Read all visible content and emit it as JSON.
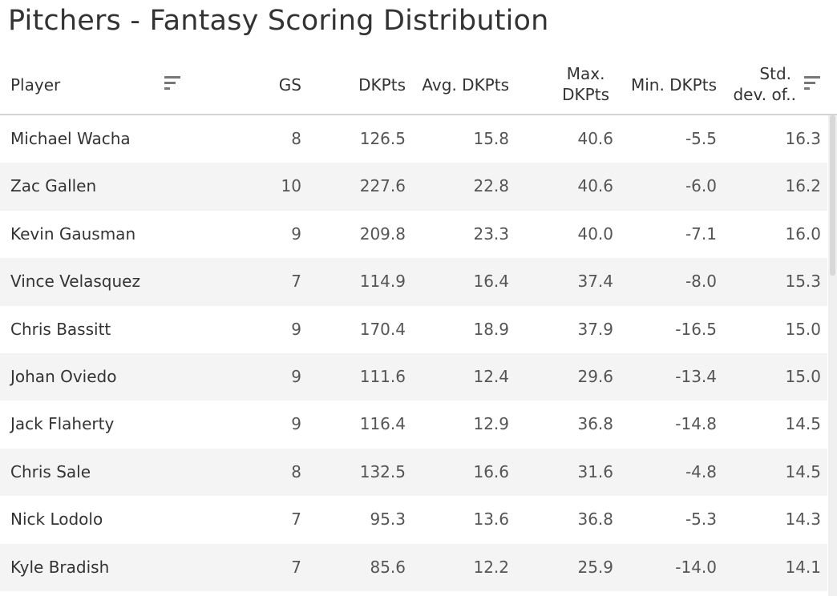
{
  "title": "Pitchers - Fantasy Scoring Distribution",
  "columns": {
    "player": "Player",
    "gs": "GS",
    "dkpts": "DKPts",
    "avg": "Avg. DKPts",
    "max_line1": "Max.",
    "max_line2": "DKPts",
    "min": "Min. DKPts",
    "std_line1": "Std.",
    "std_line2": "dev. of.."
  },
  "icons": {
    "player_sort": "sort-icon",
    "std_sort": "sort-descending-icon"
  },
  "rows": [
    {
      "player": "Michael Wacha",
      "gs": "8",
      "dkpts": "126.5",
      "avg": "15.8",
      "max": "40.6",
      "min": "-5.5",
      "std": "16.3"
    },
    {
      "player": "Zac Gallen",
      "gs": "10",
      "dkpts": "227.6",
      "avg": "22.8",
      "max": "40.6",
      "min": "-6.0",
      "std": "16.2"
    },
    {
      "player": "Kevin Gausman",
      "gs": "9",
      "dkpts": "209.8",
      "avg": "23.3",
      "max": "40.0",
      "min": "-7.1",
      "std": "16.0"
    },
    {
      "player": "Vince Velasquez",
      "gs": "7",
      "dkpts": "114.9",
      "avg": "16.4",
      "max": "37.4",
      "min": "-8.0",
      "std": "15.3"
    },
    {
      "player": "Chris Bassitt",
      "gs": "9",
      "dkpts": "170.4",
      "avg": "18.9",
      "max": "37.9",
      "min": "-16.5",
      "std": "15.0"
    },
    {
      "player": "Johan Oviedo",
      "gs": "9",
      "dkpts": "111.6",
      "avg": "12.4",
      "max": "29.6",
      "min": "-13.4",
      "std": "15.0"
    },
    {
      "player": "Jack Flaherty",
      "gs": "9",
      "dkpts": "116.4",
      "avg": "12.9",
      "max": "36.8",
      "min": "-14.8",
      "std": "14.5"
    },
    {
      "player": "Chris Sale",
      "gs": "8",
      "dkpts": "132.5",
      "avg": "16.6",
      "max": "31.6",
      "min": "-4.8",
      "std": "14.5"
    },
    {
      "player": "Nick Lodolo",
      "gs": "7",
      "dkpts": "95.3",
      "avg": "13.6",
      "max": "36.8",
      "min": "-5.3",
      "std": "14.3"
    },
    {
      "player": "Kyle Bradish",
      "gs": "7",
      "dkpts": "85.6",
      "avg": "12.2",
      "max": "25.9",
      "min": "-14.0",
      "std": "14.1"
    }
  ]
}
